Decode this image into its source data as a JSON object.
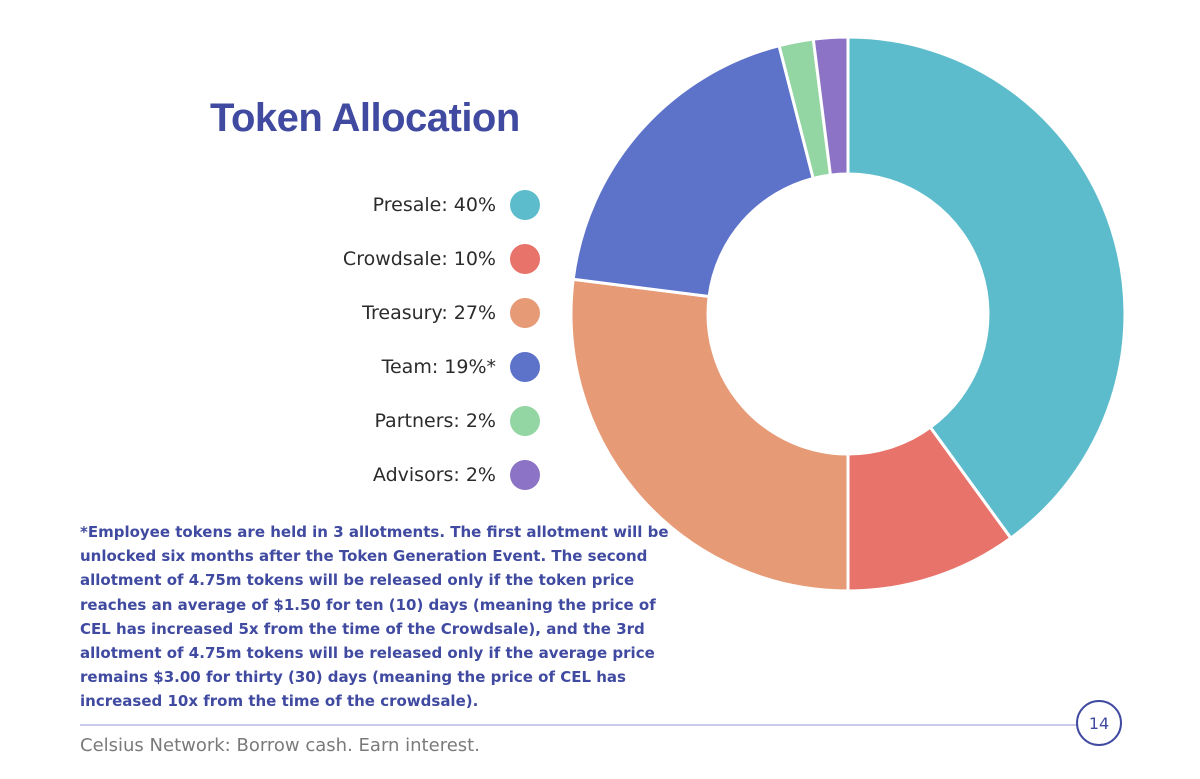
{
  "slide": {
    "title": "Token Allocation",
    "footnote": "*Employee tokens are held in 3 allotments. The first allotment will be unlocked six months after the Token Generation Event. The second allotment of 4.75m tokens will be released only if the token price reaches an average of $1.50 for ten (10) days (meaning the price of CEL has increased 5x from the time of the Crowdsale),  and the 3rd allotment of 4.75m tokens will be released only if the average price remains $3.00 for thirty (30) days (meaning the price of CEL has increased 10x from the time of the crowdsale).",
    "footer": "Celsius Network: Borrow cash. Earn interest.",
    "page_number": "14"
  },
  "legend": [
    {
      "label": "Presale: 40%",
      "color": "#5dbccc"
    },
    {
      "label": "Crowdsale: 10%",
      "color": "#e8736a"
    },
    {
      "label": "Treasury: 27%",
      "color": "#e69a76"
    },
    {
      "label": "Team: 19%*",
      "color": "#5d72c9"
    },
    {
      "label": "Partners: 2%",
      "color": "#93d5a3"
    },
    {
      "label": "Advisors: 2%",
      "color": "#8c73c5"
    }
  ],
  "chart_data": {
    "type": "pie",
    "style": "donut",
    "title": "Token Allocation",
    "categories": [
      "Presale",
      "Crowdsale",
      "Treasury",
      "Team",
      "Partners",
      "Advisors"
    ],
    "values": [
      40,
      10,
      27,
      19,
      2,
      2
    ],
    "unit": "%",
    "colors": [
      "#5dbccc",
      "#e8736a",
      "#e69a76",
      "#5d72c9",
      "#93d5a3",
      "#8c73c5"
    ],
    "start": "12 o'clock, clockwise",
    "legend_position": "left"
  }
}
